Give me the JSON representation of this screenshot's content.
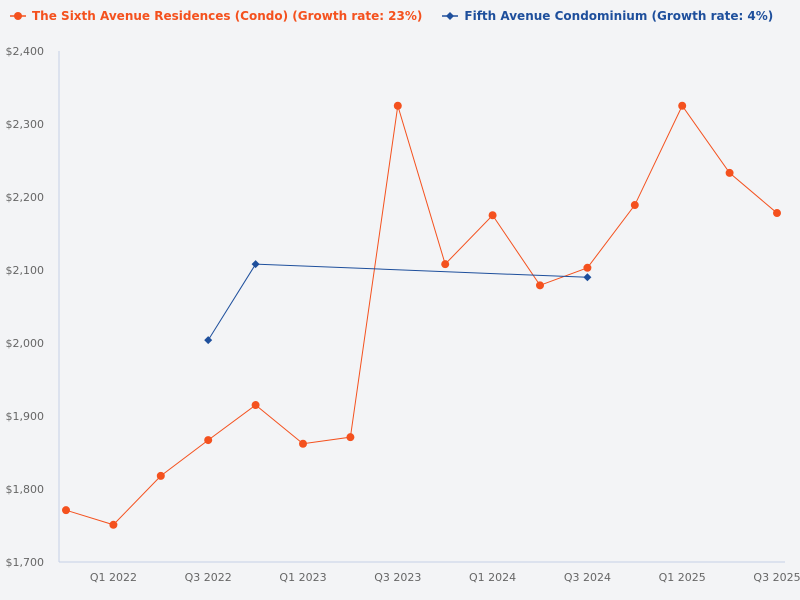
{
  "legend": {
    "series0": "The Sixth Avenue Residences (Condo) (Growth rate: 23%)",
    "series1": "Fifth Avenue Condominium (Growth rate: 4%)"
  },
  "colors": {
    "series0": "#f4511e",
    "series1": "#1e4f9c",
    "axis": "#c5d0e6",
    "text": "#666666",
    "bg": "#f3f4f6"
  },
  "chart_data": {
    "type": "line",
    "title": "",
    "xlabel": "",
    "ylabel": "",
    "categories": [
      "Q4 2021",
      "Q1 2022",
      "Q2 2022",
      "Q3 2022",
      "Q4 2022",
      "Q1 2023",
      "Q2 2023",
      "Q3 2023",
      "Q4 2023",
      "Q1 2024",
      "Q2 2024",
      "Q3 2024",
      "Q4 2024",
      "Q1 2025",
      "Q2 2025",
      "Q3 2025"
    ],
    "x_tick_labels": [
      "Q1 2022",
      "Q3 2022",
      "Q1 2023",
      "Q3 2023",
      "Q1 2024",
      "Q3 2024",
      "Q1 2025",
      "Q3 2025"
    ],
    "y_tick_labels": [
      "$1,700",
      "$1,800",
      "$1,900",
      "$2,000",
      "$2,100",
      "$2,200",
      "$2,300",
      "$2,400"
    ],
    "ylim": [
      1700,
      2400
    ],
    "grid": false,
    "legend_position": "top-left",
    "series": [
      {
        "name": "The Sixth Avenue Residences (Condo) (Growth rate: 23%)",
        "marker": "circle",
        "values": [
          1771,
          1751,
          1818,
          1867,
          1915,
          1862,
          1871,
          2325,
          2108,
          2175,
          2079,
          2103,
          2189,
          2325,
          2233,
          2178
        ]
      },
      {
        "name": "Fifth Avenue Condominium (Growth rate: 4%)",
        "marker": "diamond",
        "values": [
          null,
          null,
          null,
          2004,
          2108,
          null,
          null,
          null,
          null,
          null,
          null,
          2090,
          null,
          null,
          null,
          null
        ]
      }
    ]
  }
}
